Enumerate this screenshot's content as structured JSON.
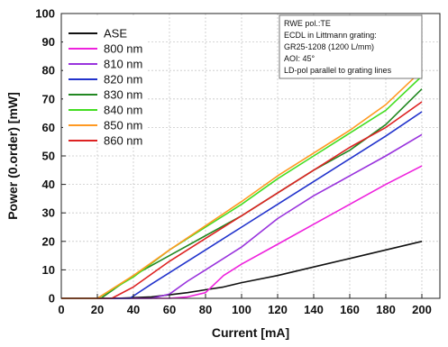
{
  "chart_data": {
    "type": "line",
    "xlabel": "Current [mA]",
    "ylabel": "Power (0.order) [mW]",
    "xlim": [
      0,
      210
    ],
    "ylim": [
      0,
      100
    ],
    "x_ticks": [
      0,
      20,
      40,
      60,
      80,
      100,
      120,
      140,
      160,
      180,
      200
    ],
    "y_ticks": [
      0,
      10,
      20,
      30,
      40,
      50,
      60,
      70,
      80,
      90,
      100
    ],
    "grid": true,
    "legend_position": "top-left",
    "annotation": {
      "position": "top-right",
      "lines": [
        "RWE pol.:TE",
        "ECDL in Littmann grating:",
        "GR25-1208 (1200 L/mm)",
        "AOI: 45°",
        "LD-pol parallel to grating lines"
      ]
    },
    "series": [
      {
        "name": "ASE",
        "color": "#111111",
        "x": [
          0,
          30,
          50,
          70,
          80,
          90,
          100,
          120,
          140,
          160,
          180,
          200
        ],
        "y": [
          0,
          0,
          0.5,
          2,
          3,
          4,
          5.5,
          8,
          11,
          14,
          17,
          20
        ]
      },
      {
        "name": "800 nm",
        "color": "#ee22dd",
        "x": [
          0,
          60,
          70,
          80,
          90,
          100,
          120,
          140,
          160,
          180,
          200
        ],
        "y": [
          0,
          0,
          0.5,
          2,
          8,
          12,
          19,
          26,
          33,
          40,
          46.5
        ]
      },
      {
        "name": "810 nm",
        "color": "#9933dd",
        "x": [
          0,
          50,
          60,
          70,
          80,
          100,
          120,
          140,
          160,
          180,
          200
        ],
        "y": [
          0,
          0,
          1.5,
          6,
          10,
          18,
          28,
          36,
          43,
          50,
          57.5
        ]
      },
      {
        "name": "820 nm",
        "color": "#2233cc",
        "x": [
          0,
          38,
          50,
          60,
          80,
          100,
          120,
          140,
          160,
          180,
          200
        ],
        "y": [
          0,
          0,
          5,
          9,
          17,
          25,
          33,
          41,
          49,
          57,
          65.5
        ]
      },
      {
        "name": "830 nm",
        "color": "#228822",
        "x": [
          0,
          22,
          40,
          60,
          80,
          100,
          120,
          140,
          160,
          180,
          200
        ],
        "y": [
          0,
          0,
          8,
          15,
          22,
          29,
          37,
          45,
          52,
          61,
          73.5
        ]
      },
      {
        "name": "840 nm",
        "color": "#44dd22",
        "x": [
          0,
          20,
          40,
          60,
          80,
          100,
          120,
          140,
          160,
          180,
          200
        ],
        "y": [
          0,
          0,
          7.5,
          17,
          25,
          33,
          42,
          50,
          58,
          66,
          78
        ]
      },
      {
        "name": "850 nm",
        "color": "#ff9922",
        "x": [
          0,
          20,
          40,
          60,
          80,
          100,
          120,
          140,
          160,
          180,
          200
        ],
        "y": [
          0,
          0,
          8,
          17,
          25.5,
          34,
          43,
          51,
          59,
          68,
          80
        ]
      },
      {
        "name": "860 nm",
        "color": "#dd2222",
        "x": [
          0,
          28,
          40,
          60,
          80,
          100,
          120,
          140,
          160,
          180,
          200
        ],
        "y": [
          0,
          0,
          4,
          13,
          21,
          29,
          37,
          45,
          53,
          60,
          69
        ]
      }
    ]
  }
}
